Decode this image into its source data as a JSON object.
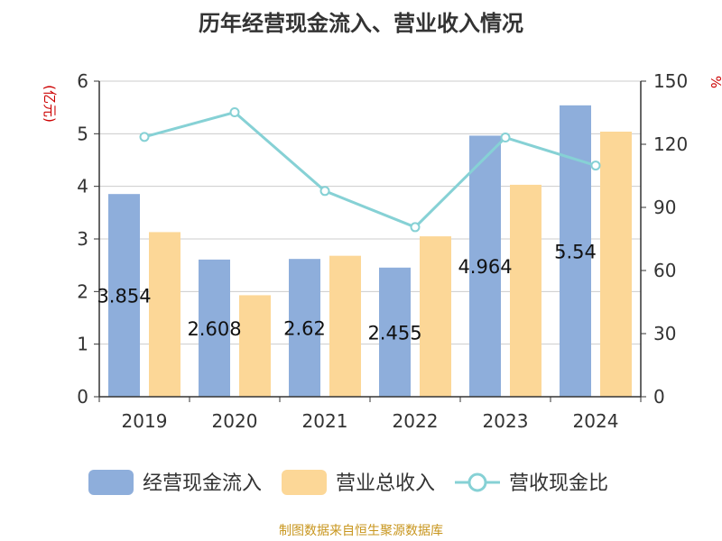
{
  "title": "历年经营现金流入、营业收入情况",
  "left_unit": "(亿元)",
  "right_unit": "%",
  "footer": "制图数据来自恒生聚源数据库",
  "legend": [
    {
      "label": "经营现金流入",
      "color": "#8eaedb",
      "kind": "bar"
    },
    {
      "label": "营业总收入",
      "color": "#fcd797",
      "kind": "bar"
    },
    {
      "label": "营收现金比",
      "color": "#86d1d5",
      "kind": "line"
    }
  ],
  "chart_data": {
    "type": "bar",
    "title": "历年经营现金流入、营业收入情况",
    "categories": [
      "2019",
      "2020",
      "2021",
      "2022",
      "2023",
      "2024"
    ],
    "y_left": {
      "label": "(亿元)",
      "min": 0,
      "max": 6,
      "ticks": [
        "0",
        "1",
        "2",
        "3",
        "4",
        "5",
        "6"
      ]
    },
    "y_right": {
      "label": "%",
      "min": 0,
      "max": 150,
      "ticks": [
        "0",
        "30",
        "60",
        "90",
        "120",
        "150"
      ]
    },
    "grid": true,
    "legend_position": "bottom",
    "series": [
      {
        "name": "经营现金流入",
        "type": "bar",
        "axis": "left",
        "color": "#8eaedb",
        "values": [
          3.854,
          2.608,
          2.62,
          2.455,
          4.964,
          5.54
        ],
        "data_labels": [
          "3.854",
          "2.608",
          "2.62",
          "2.455",
          "4.964",
          "5.54"
        ]
      },
      {
        "name": "营业总收入",
        "type": "bar",
        "axis": "left",
        "color": "#fcd797",
        "values": [
          3.13,
          1.93,
          2.68,
          3.05,
          4.03,
          5.04
        ]
      },
      {
        "name": "营收现金比",
        "type": "line",
        "axis": "right",
        "color": "#86d1d5",
        "values": [
          123.5,
          135.2,
          97.8,
          80.6,
          123.2,
          109.9
        ]
      }
    ]
  }
}
